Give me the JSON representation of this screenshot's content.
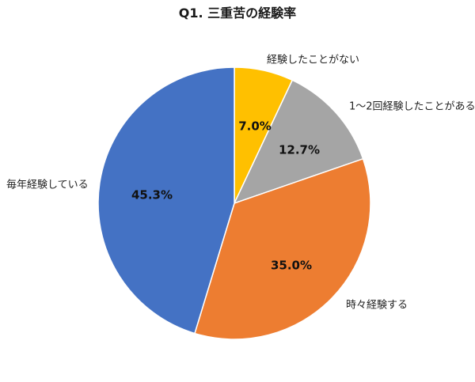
{
  "chart_data": {
    "type": "pie",
    "title": "Q1. 三重苦の経験率",
    "start_angle_deg": 0,
    "direction": "clockwise",
    "slices": [
      {
        "label": "経験したことがない",
        "value": 7.0,
        "display": "7.0%",
        "color": "#FFC000"
      },
      {
        "label": "1〜2回経験したことがある",
        "value": 12.7,
        "display": "12.7%",
        "color": "#A5A5A5"
      },
      {
        "label": "時々経験する",
        "value": 35.0,
        "display": "35.0%",
        "color": "#ED7D31"
      },
      {
        "label": "毎年経験している",
        "value": 45.3,
        "display": "45.3%",
        "color": "#4472C4"
      }
    ]
  }
}
